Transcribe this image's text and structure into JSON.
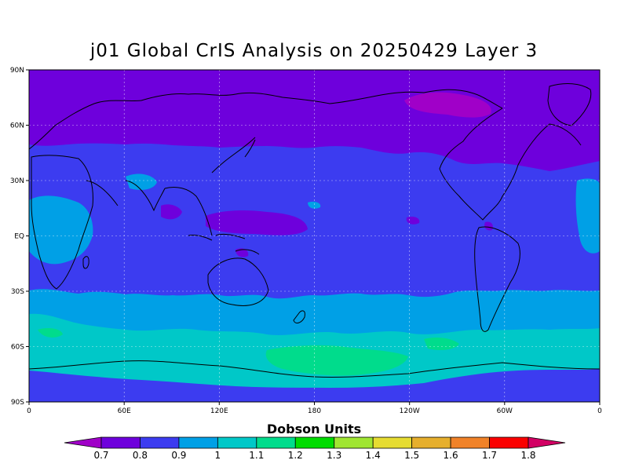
{
  "title": "j01 Global CrIS Analysis on 20250429 Layer 3",
  "lat_labels": [
    "90N",
    "60N",
    "30N",
    "EQ",
    "30S",
    "60S",
    "90S"
  ],
  "lon_labels": [
    "0",
    "60E",
    "120E",
    "180",
    "120W",
    "60W",
    "0"
  ],
  "colorbar": {
    "title": "Dobson Units",
    "ticks": [
      "0.7",
      "0.8",
      "0.9",
      "1",
      "1.1",
      "1.2",
      "1.3",
      "1.4",
      "1.5",
      "1.6",
      "1.7",
      "1.8"
    ],
    "colors": [
      "#a000c8",
      "#6e00dc",
      "#3c3cf0",
      "#00a0e6",
      "#00c8c8",
      "#00dc8c",
      "#00dc00",
      "#a0e632",
      "#e6dc32",
      "#e6af2d",
      "#f08228",
      "#fa0000",
      "#d20064"
    ]
  }
}
